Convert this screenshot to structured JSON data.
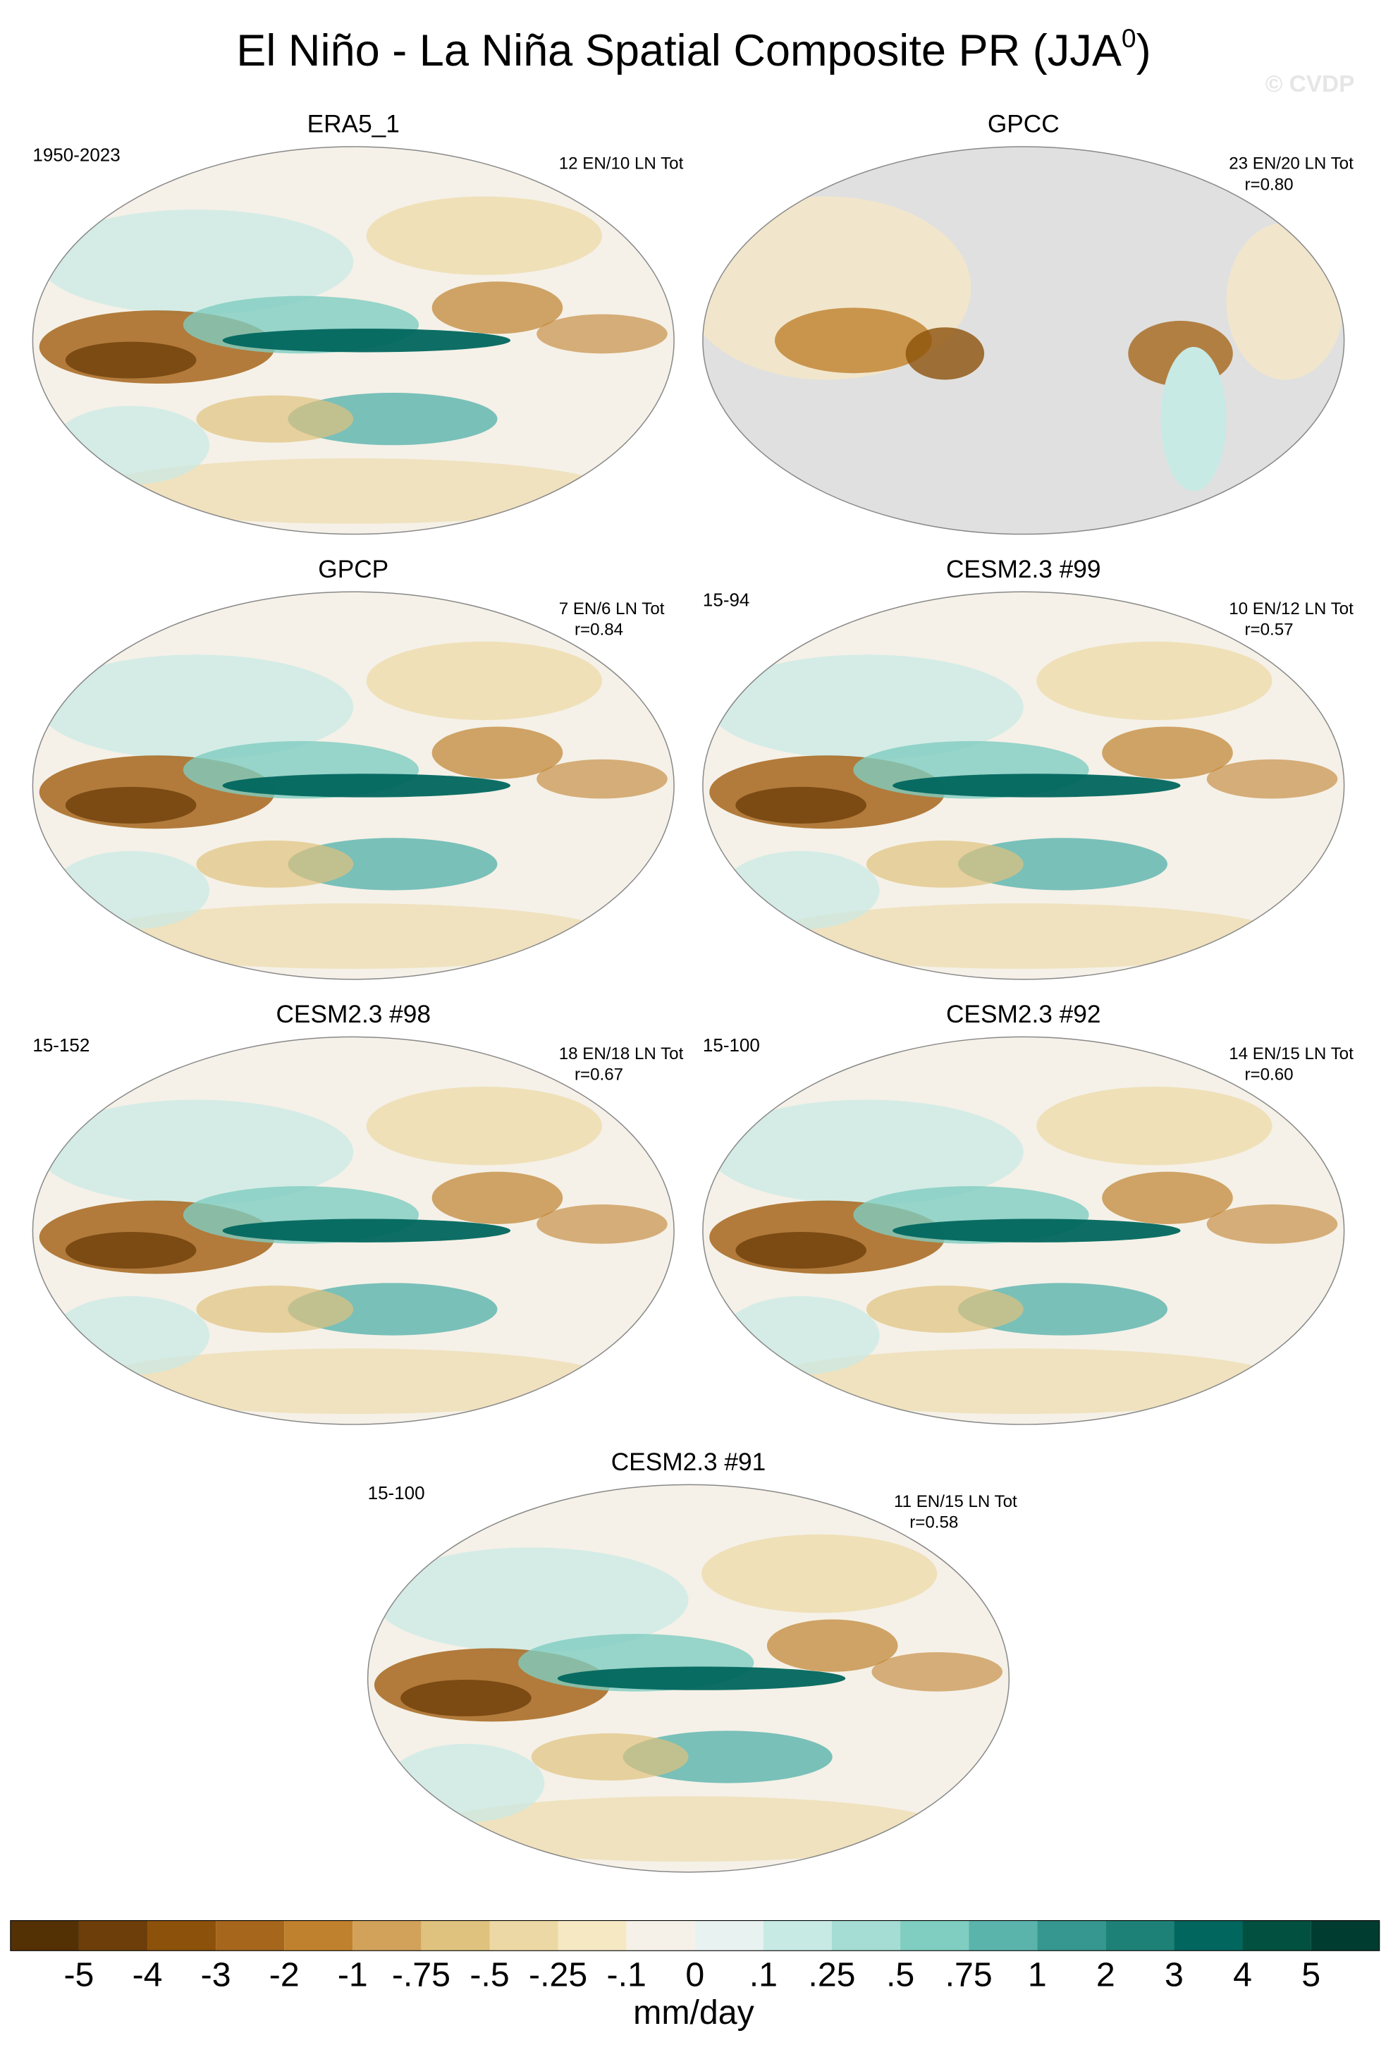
{
  "title": "El Niño - La Niña Spatial Composite PR (JJA",
  "title_sup": "0",
  "title_end": ")",
  "watermark": "© CVDP",
  "panels": [
    {
      "title": "ERA5_1",
      "left": "1950-2023",
      "right": [
        "12 EN/10 LN Tot"
      ]
    },
    {
      "title": "GPCC",
      "right": [
        "23 EN/20 LN Tot",
        "r=0.80"
      ]
    },
    {
      "title": "GPCP",
      "right": [
        "7 EN/6 LN Tot",
        "r=0.84"
      ]
    },
    {
      "title": "CESM2.3 #99",
      "left": "15-94",
      "right": [
        "10 EN/12 LN Tot",
        "r=0.57"
      ]
    },
    {
      "title": "CESM2.3 #98",
      "left": "15-152",
      "right": [
        "18 EN/18 LN Tot",
        "r=0.67"
      ]
    },
    {
      "title": "CESM2.3 #92",
      "left": "15-100",
      "right": [
        "14 EN/15 LN Tot",
        "r=0.60"
      ]
    },
    {
      "title": "CESM2.3 #91",
      "left": "15-100",
      "right": [
        "11 EN/15 LN Tot",
        "r=0.58"
      ]
    }
  ],
  "colorbar": {
    "labels": [
      "-5",
      "-4",
      "-3",
      "-2",
      "-1",
      "-.75",
      "-.5",
      "-.25",
      "-.1",
      "0",
      ".1",
      ".25",
      ".5",
      ".75",
      "1",
      "2",
      "3",
      "4",
      "5"
    ],
    "colors": [
      "#543005",
      "#6e3e0a",
      "#8c510a",
      "#a6661c",
      "#bf812d",
      "#d2a25a",
      "#dfc27d",
      "#ecd8a4",
      "#f6e8c3",
      "#f5f1e8",
      "#e8f2f0",
      "#c7eae5",
      "#a5dcd4",
      "#80cdc1",
      "#5ab4ac",
      "#35978f",
      "#1d8177",
      "#01665e",
      "#02503f",
      "#003c30"
    ],
    "units": "mm/day"
  }
}
